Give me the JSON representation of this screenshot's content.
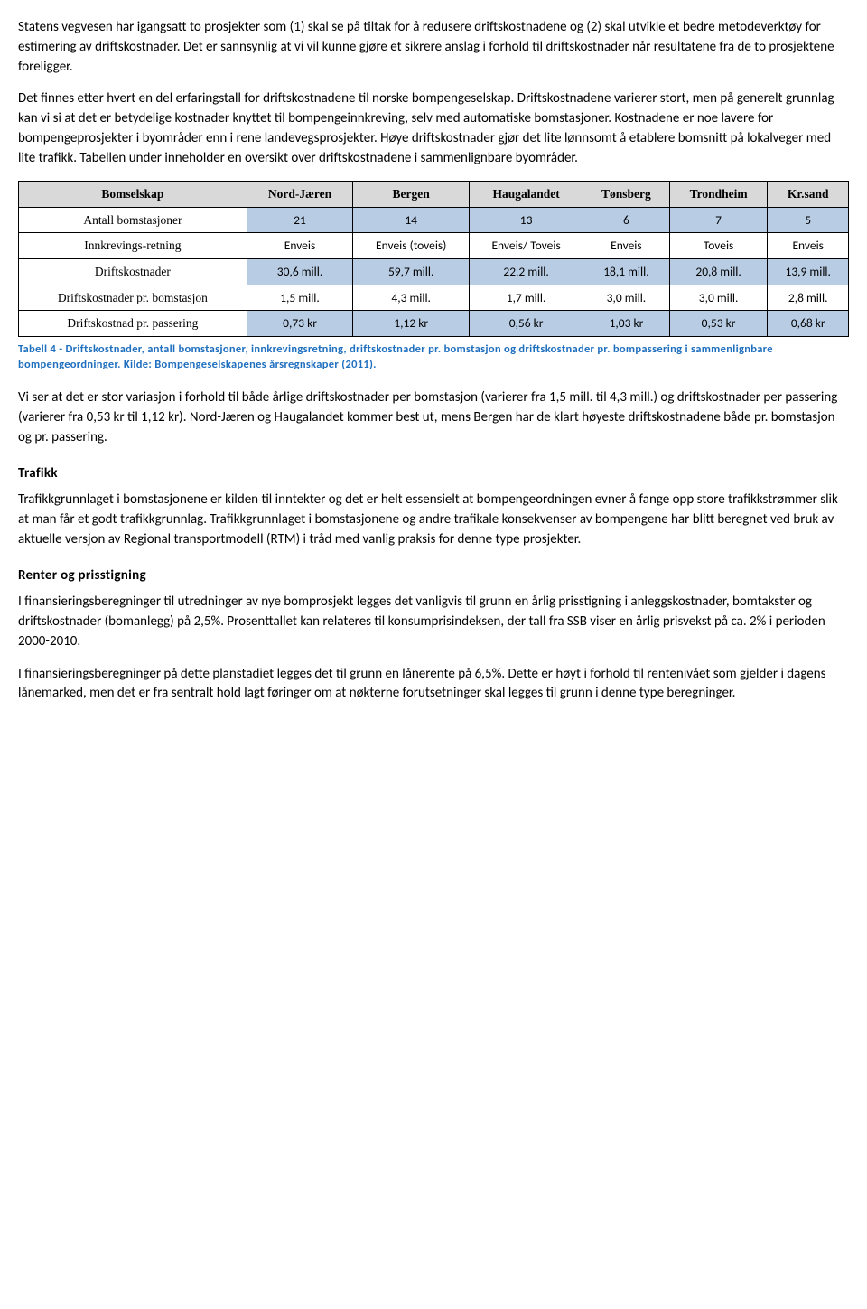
{
  "para1": "Statens vegvesen har igangsatt to prosjekter som (1) skal se på tiltak for å redusere driftskostnadene og (2) skal utvikle et bedre metodeverktøy for estimering av driftskostnader. Det er sannsynlig at vi vil kunne gjøre et sikrere anslag i forhold til driftskostnader når resultatene fra de to prosjektene foreligger.",
  "para2": "Det finnes etter hvert en del erfaringstall for driftskostnadene til norske bompengeselskap. Driftskostnadene varierer stort, men på generelt grunnlag kan vi si at det er betydelige kostnader knyttet til bompengeinnkreving, selv med automatiske bomstasjoner. Kostnadene er noe lavere for bompengeprosjekter i byområder enn i rene landevegsprosjekter. Høye driftskostnader gjør det lite lønnsomt å etablere bomsnitt på lokalveger med lite trafikk. Tabellen under inneholder en oversikt over driftskostnadene i sammenlignbare byområder.",
  "table": {
    "headers": [
      "Bomselskap",
      "Nord-Jæren",
      "Bergen",
      "Haugalandet",
      "Tønsberg",
      "Trondheim",
      "Kr.sand"
    ],
    "rows": [
      {
        "label": "Antall bomstasjoner",
        "cells": [
          "21",
          "14",
          "13",
          "6",
          "7",
          "5"
        ],
        "style": "blue"
      },
      {
        "label": "Innkrevings-retning",
        "cells": [
          "Enveis",
          "Enveis (toveis)",
          "Enveis/ Toveis",
          "Enveis",
          "Toveis",
          "Enveis"
        ],
        "style": "white"
      },
      {
        "label": "Driftskostnader",
        "cells": [
          "30,6 mill.",
          "59,7 mill.",
          "22,2 mill.",
          "18,1 mill.",
          "20,8 mill.",
          "13,9 mill."
        ],
        "style": "blue"
      },
      {
        "label": "Driftskostnader pr. bomstasjon",
        "cells": [
          "1,5 mill.",
          "4,3 mill.",
          "1,7 mill.",
          "3,0 mill.",
          "3,0 mill.",
          "2,8 mill."
        ],
        "style": "white"
      },
      {
        "label": "Driftskostnad pr. passering",
        "cells": [
          "0,73 kr",
          "1,12 kr",
          "0,56 kr",
          "1,03 kr",
          "0,53 kr",
          "0,68 kr"
        ],
        "style": "blue"
      }
    ]
  },
  "caption": "Tabell 4 - Driftskostnader, antall bomstasjoner, innkrevingsretning, driftskostnader pr. bomstasjon og driftskostnader pr. bompassering i sammenlignbare bompengeordninger. Kilde: Bompengeselskapenes årsregnskaper (2011).",
  "para3": "Vi ser at det er stor variasjon i forhold til både årlige driftskostnader per bomstasjon (varierer fra 1,5 mill. til 4,3 mill.) og driftskostnader per passering (varierer fra 0,53 kr til 1,12 kr). Nord-Jæren og Haugalandet kommer best ut, mens Bergen har de klart høyeste driftskostnadene både pr. bomstasjon og pr. passering.",
  "heading_trafikk": "Trafikk",
  "para_trafikk": "Trafikkgrunnlaget i bomstasjonene er kilden til inntekter og det er helt essensielt at bompengeordningen evner å fange opp store trafikkstrømmer slik at man får et godt trafikkgrunnlag. Trafikkgrunnlaget i bomstasjonene og andre trafikale konsekvenser av bompengene har blitt beregnet ved bruk av aktuelle versjon av Regional transportmodell (RTM) i tråd med vanlig praksis for denne type prosjekter.",
  "heading_renter": "Renter og prisstigning",
  "para_renter1": "I finansieringsberegninger til utredninger av nye bomprosjekt legges det vanligvis til grunn en årlig prisstigning i anleggskostnader, bomtakster og driftskostnader (bomanlegg) på 2,5%. Prosenttallet kan relateres til konsumprisindeksen, der tall fra SSB viser en årlig prisvekst på ca. 2% i perioden 2000-2010.",
  "para_renter2": "I finansieringsberegninger på dette planstadiet legges det til grunn en lånerente på 6,5%. Dette er høyt i forhold til rentenivået som gjelder i dagens lånemarked, men det er fra sentralt hold lagt føringer om at nøkterne forutsetninger skal legges til grunn i denne type beregninger."
}
